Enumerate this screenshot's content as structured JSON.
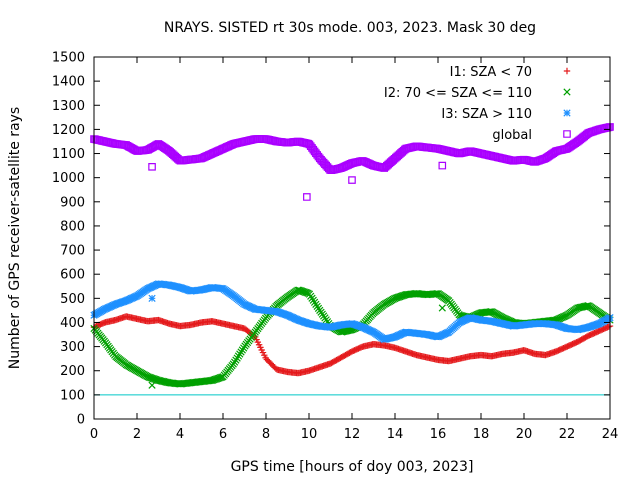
{
  "chart_data": {
    "type": "scatter",
    "title": "NRAYS. SISTED rt 30s mode. 003, 2023. Mask 30 deg",
    "xlabel": "GPS time [hours of doy 003, 2023]",
    "ylabel": "Number of GPS receiver-satellite rays",
    "xlim": [
      0,
      24
    ],
    "ylim": [
      0,
      1500
    ],
    "x_ticks": [
      0,
      2,
      4,
      6,
      8,
      10,
      12,
      14,
      16,
      18,
      20,
      22,
      24
    ],
    "y_ticks": [
      0,
      100,
      200,
      300,
      400,
      500,
      600,
      700,
      800,
      900,
      1000,
      1100,
      1200,
      1300,
      1400,
      1500
    ],
    "grid": false,
    "legend_position": "top-right",
    "reference_line": {
      "y": 100,
      "color": "#00c8c8"
    },
    "series": [
      {
        "name": "I1: SZA < 70",
        "color": "#e41a1c",
        "marker": "plus",
        "x": [
          0,
          0.5,
          1,
          1.5,
          2,
          2.5,
          3,
          3.5,
          4,
          4.5,
          5,
          5.5,
          6,
          6.5,
          7,
          7.5,
          8,
          8.5,
          9,
          9.5,
          10,
          10.5,
          11,
          11.5,
          12,
          12.5,
          13,
          13.5,
          14,
          14.5,
          15,
          15.5,
          16,
          16.5,
          17,
          17.5,
          18,
          18.5,
          19,
          19.5,
          20,
          20.5,
          21,
          21.5,
          22,
          22.5,
          23,
          23.5,
          24
        ],
        "values": [
          380,
          400,
          410,
          425,
          415,
          405,
          410,
          395,
          385,
          390,
          400,
          405,
          395,
          385,
          375,
          340,
          250,
          205,
          195,
          190,
          200,
          215,
          230,
          255,
          280,
          300,
          310,
          305,
          295,
          280,
          265,
          255,
          245,
          240,
          250,
          260,
          265,
          260,
          270,
          275,
          285,
          270,
          265,
          280,
          300,
          320,
          345,
          365,
          385
        ]
      },
      {
        "name": "I2: 70 <= SZA <= 110",
        "color": "#00a000",
        "marker": "cross",
        "x": [
          0,
          0.5,
          1,
          1.5,
          2,
          2.5,
          3,
          3.5,
          4,
          4.5,
          5,
          5.5,
          6,
          6.5,
          7,
          7.5,
          8,
          8.5,
          9,
          9.5,
          10,
          10.5,
          11,
          11.5,
          12,
          12.5,
          13,
          13.5,
          14,
          14.5,
          15,
          15.5,
          16,
          16.5,
          17,
          17.5,
          18,
          18.5,
          19,
          19.5,
          20,
          20.5,
          21,
          21.5,
          22,
          22.5,
          23,
          23.5,
          24
        ],
        "values": [
          375,
          320,
          260,
          225,
          200,
          175,
          160,
          150,
          145,
          150,
          155,
          160,
          175,
          230,
          300,
          360,
          420,
          470,
          505,
          535,
          520,
          450,
          385,
          360,
          370,
          390,
          440,
          475,
          500,
          515,
          520,
          515,
          520,
          490,
          430,
          420,
          440,
          445,
          420,
          400,
          395,
          400,
          405,
          410,
          430,
          460,
          470,
          440,
          410
        ]
      },
      {
        "name": "I3: SZA > 110",
        "color": "#1e90ff",
        "marker": "star",
        "x": [
          0,
          0.5,
          1,
          1.5,
          2,
          2.5,
          3,
          3.5,
          4,
          4.5,
          5,
          5.5,
          6,
          6.5,
          7,
          7.5,
          8,
          8.5,
          9,
          9.5,
          10,
          10.5,
          11,
          11.5,
          12,
          12.5,
          13,
          13.5,
          14,
          14.5,
          15,
          15.5,
          16,
          16.5,
          17,
          17.5,
          18,
          18.5,
          19,
          19.5,
          20,
          20.5,
          21,
          21.5,
          22,
          22.5,
          23,
          23.5,
          24
        ],
        "values": [
          430,
          455,
          475,
          490,
          510,
          540,
          560,
          555,
          545,
          530,
          535,
          545,
          540,
          510,
          475,
          455,
          450,
          445,
          430,
          410,
          395,
          385,
          380,
          390,
          395,
          380,
          360,
          330,
          340,
          360,
          355,
          350,
          340,
          360,
          400,
          420,
          410,
          405,
          395,
          385,
          390,
          395,
          395,
          390,
          375,
          370,
          380,
          395,
          420
        ]
      },
      {
        "name": "global",
        "color": "#aa00ff",
        "marker": "square",
        "x": [
          0,
          0.5,
          1,
          1.5,
          2,
          2.5,
          3,
          3.5,
          4,
          4.5,
          5,
          5.5,
          6,
          6.5,
          7,
          7.5,
          8,
          8.5,
          9,
          9.5,
          10,
          10.5,
          11,
          11.5,
          12,
          12.5,
          13,
          13.5,
          14,
          14.5,
          15,
          15.5,
          16,
          16.5,
          17,
          17.5,
          18,
          18.5,
          19,
          19.5,
          20,
          20.5,
          21,
          21.5,
          22,
          22.5,
          23,
          23.5,
          24
        ],
        "values": [
          1160,
          1150,
          1140,
          1135,
          1110,
          1115,
          1140,
          1110,
          1070,
          1075,
          1080,
          1100,
          1120,
          1140,
          1150,
          1160,
          1160,
          1150,
          1145,
          1150,
          1140,
          1080,
          1030,
          1040,
          1060,
          1070,
          1050,
          1040,
          1080,
          1120,
          1130,
          1125,
          1120,
          1110,
          1100,
          1110,
          1100,
          1090,
          1080,
          1070,
          1075,
          1065,
          1080,
          1110,
          1120,
          1150,
          1185,
          1200,
          1210
        ]
      }
    ],
    "outliers": [
      {
        "series": "global",
        "x": 2.7,
        "value": 1045
      },
      {
        "series": "global",
        "x": 9.9,
        "value": 920
      },
      {
        "series": "global",
        "x": 12,
        "value": 990
      },
      {
        "series": "global",
        "x": 16.2,
        "value": 1050
      },
      {
        "series": "I3: SZA > 110",
        "x": 2.7,
        "value": 500
      },
      {
        "series": "I2: 70 <= SZA <= 110",
        "x": 2.7,
        "value": 140
      },
      {
        "series": "I2: 70 <= SZA <= 110",
        "x": 16.2,
        "value": 460
      }
    ]
  }
}
